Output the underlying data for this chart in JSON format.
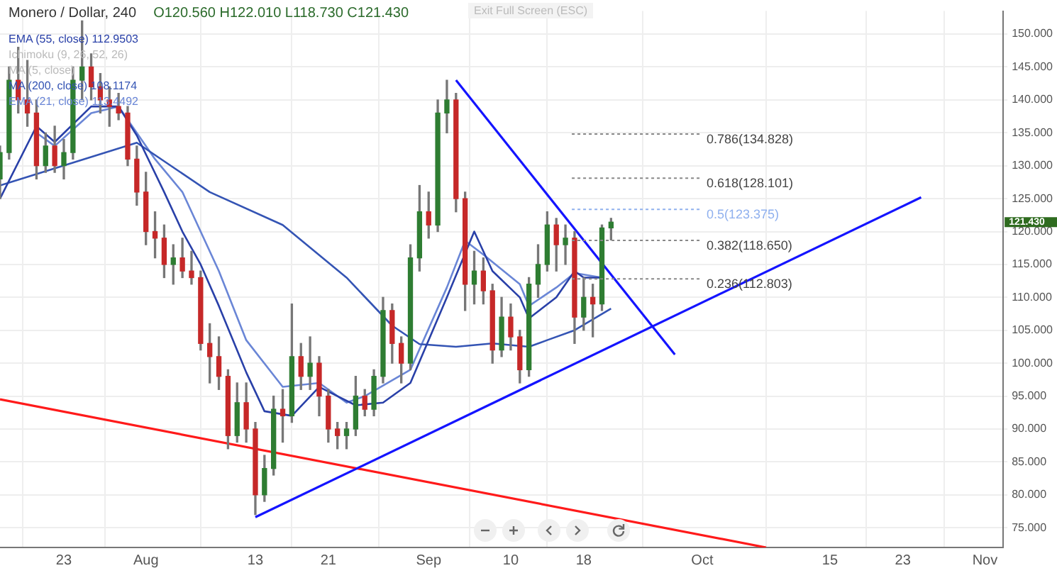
{
  "chart_data": {
    "type": "candlestick",
    "title": "Monero / Dollar, 240",
    "subtitle": "O120.560 H122.010 L118.730 C121.430",
    "x": [
      "--07-16",
      "--07-17",
      "--07-18",
      "--07-19",
      "--07-20",
      "--07-21",
      "--07-22",
      "--07-23",
      "--07-24",
      "--07-25",
      "--07-26",
      "--07-27",
      "--07-28",
      "--07-29",
      "--07-30",
      "--07-31",
      "--08-01",
      "--08-02",
      "--08-03",
      "--08-04",
      "--08-05",
      "--08-06",
      "--08-07",
      "--08-08",
      "--08-09",
      "--08-10",
      "--08-11",
      "--08-12",
      "--08-13",
      "--08-14",
      "--08-15",
      "--08-16",
      "--08-17",
      "--08-18",
      "--08-19",
      "--08-20",
      "--08-21",
      "--08-22",
      "--08-23",
      "--08-24",
      "--08-25",
      "--08-26",
      "--08-27",
      "--08-28",
      "--08-29",
      "--08-30",
      "--08-31",
      "--09-01",
      "--09-02",
      "--09-03",
      "--09-04",
      "--09-05",
      "--09-06",
      "--09-07",
      "--09-08",
      "--09-09",
      "--09-10",
      "--09-11",
      "--09-12",
      "--09-13",
      "--09-14",
      "--09-15",
      "--09-16",
      "--09-17",
      "--09-18",
      "--09-19",
      "--09-20",
      "--09-21"
    ],
    "ohlc": [
      [
        128,
        133,
        125,
        132
      ],
      [
        132,
        145,
        131,
        143
      ],
      [
        143,
        148,
        138,
        140
      ],
      [
        140,
        146,
        136,
        138
      ],
      [
        138,
        140,
        128,
        130
      ],
      [
        130,
        135,
        129,
        133
      ],
      [
        133,
        136,
        129,
        130
      ],
      [
        130,
        134,
        128,
        132
      ],
      [
        132,
        145,
        131,
        143
      ],
      [
        143,
        152,
        140,
        145
      ],
      [
        145,
        147,
        140,
        142
      ],
      [
        142,
        144,
        138,
        140
      ],
      [
        140,
        142,
        136,
        139
      ],
      [
        139,
        141,
        137,
        138
      ],
      [
        138,
        139,
        130,
        131
      ],
      [
        131,
        133,
        124,
        126
      ],
      [
        126,
        129,
        118,
        120
      ],
      [
        120,
        123,
        116,
        119
      ],
      [
        119,
        121,
        113,
        115
      ],
      [
        115,
        118,
        112,
        116
      ],
      [
        116,
        119,
        113,
        114
      ],
      [
        114,
        117,
        112,
        113
      ],
      [
        113,
        114,
        102,
        103
      ],
      [
        103,
        106,
        97,
        101
      ],
      [
        101,
        104,
        96,
        98
      ],
      [
        98,
        99,
        87,
        89
      ],
      [
        89,
        97,
        88,
        94
      ],
      [
        94,
        97,
        88,
        90
      ],
      [
        90,
        91,
        77,
        80
      ],
      [
        80,
        86,
        79,
        84
      ],
      [
        84,
        95,
        83,
        93
      ],
      [
        93,
        96,
        88,
        92
      ],
      [
        92,
        109,
        91,
        101
      ],
      [
        101,
        103,
        96,
        98
      ],
      [
        98,
        104,
        96,
        100
      ],
      [
        100,
        101,
        92,
        95
      ],
      [
        95,
        96,
        88,
        90
      ],
      [
        90,
        91,
        87,
        89
      ],
      [
        89,
        91,
        87,
        90
      ],
      [
        90,
        98,
        89,
        95
      ],
      [
        95,
        96,
        92,
        93
      ],
      [
        93,
        99,
        92,
        98
      ],
      [
        98,
        110,
        97,
        108
      ],
      [
        108,
        109,
        100,
        103
      ],
      [
        103,
        104,
        97,
        100
      ],
      [
        100,
        118,
        99,
        116
      ],
      [
        116,
        127,
        114,
        123
      ],
      [
        123,
        126,
        119,
        121
      ],
      [
        121,
        140,
        120,
        138
      ],
      [
        138,
        143,
        135,
        140
      ],
      [
        140,
        141,
        123,
        125
      ],
      [
        125,
        126,
        108,
        112
      ],
      [
        112,
        117,
        109,
        114
      ],
      [
        114,
        116,
        109,
        111
      ],
      [
        111,
        112,
        100,
        102
      ],
      [
        102,
        110,
        101,
        107
      ],
      [
        107,
        109,
        102,
        104
      ],
      [
        104,
        105,
        97,
        99
      ],
      [
        99,
        113,
        98,
        112
      ],
      [
        112,
        118,
        110,
        115
      ],
      [
        115,
        123,
        114,
        121
      ],
      [
        121,
        122,
        114,
        118
      ],
      [
        118,
        121,
        115,
        119
      ],
      [
        119,
        120,
        103,
        107
      ],
      [
        107,
        113,
        105,
        110
      ],
      [
        110,
        112,
        104,
        109
      ],
      [
        109,
        121,
        108,
        120.56
      ],
      [
        120.56,
        122.01,
        118.73,
        121.43
      ]
    ],
    "series": [
      {
        "type": "line",
        "name": "EMA (55, close) 112.9503",
        "color": "#2940a8",
        "x": [
          "--07-16",
          "--07-20",
          "--07-22",
          "--07-26",
          "--07-29",
          "--07-31",
          "--08-03",
          "--08-05",
          "--08-07",
          "--08-09",
          "--08-12",
          "--08-14",
          "--08-17",
          "--08-20",
          "--08-22",
          "--08-24",
          "--08-27",
          "--08-30",
          "--09-03",
          "--09-06",
          "--09-08",
          "--09-11",
          "--09-12",
          "--09-15",
          "--09-17",
          "--09-18",
          "--09-20"
        ],
        "values": [
          125,
          136,
          133.6,
          139,
          139,
          134.6,
          126,
          120,
          115,
          108.7,
          98.6,
          92.7,
          92,
          96.4,
          95,
          93.6,
          94,
          97,
          110,
          120,
          114,
          110,
          106.8,
          110,
          114,
          113,
          113
        ]
      },
      {
        "type": "line",
        "name": "MA (200, close) 108.1174",
        "color": "#3454b4",
        "x": [
          "--07-16",
          "--07-31",
          "--08-08",
          "--08-16",
          "--08-23",
          "--08-28",
          "--08-31",
          "--09-04",
          "--09-08",
          "--09-12",
          "--09-14",
          "--09-17",
          "--09-21"
        ],
        "values": [
          127,
          133.5,
          126,
          121,
          113,
          105.7,
          102.9,
          102.5,
          103,
          102.5,
          103.5,
          105,
          108.3
        ]
      },
      {
        "type": "line",
        "name": "EMA (21, close) 113.4492",
        "color": "#6a86d6",
        "x": [
          "--07-20",
          "--07-22",
          "--07-26",
          "--07-29",
          "--08-02",
          "--08-05",
          "--08-09",
          "--08-12",
          "--08-16",
          "--08-20",
          "--08-23",
          "--08-25",
          "--08-30",
          "--09-03",
          "--09-05",
          "--09-07",
          "--09-11",
          "--09-12",
          "--09-15",
          "--09-17",
          "--09-20"
        ],
        "values": [
          135,
          133,
          138,
          139,
          131,
          126,
          114,
          103.5,
          96.4,
          97,
          94,
          95,
          99,
          111.5,
          118.6,
          116.5,
          112,
          108.7,
          111.5,
          113.7,
          113
        ]
      },
      {
        "type": "line",
        "color": "#1414ff",
        "x": [
          "--09-04",
          "--09-28"
        ],
        "values": [
          143,
          101.3
        ]
      },
      {
        "type": "line",
        "color": "#1414ff",
        "x": [
          "--08-13",
          "--10-25"
        ],
        "values": [
          76.6,
          125.2
        ]
      },
      {
        "type": "line",
        "color": "#ff1a1a",
        "x": [
          "--07-16",
          "--10-08"
        ],
        "values": [
          94.5,
          72
        ]
      }
    ],
    "ref_lines": [
      {
        "axis": "y",
        "value": 134.828,
        "label": "0.786(134.828)",
        "color": "#888888",
        "line_style": "dotted"
      },
      {
        "axis": "y",
        "value": 128.101,
        "label": "0.618(128.101)",
        "color": "#888888",
        "line_style": "dotted"
      },
      {
        "axis": "y",
        "value": 123.375,
        "label": "0.5(123.375)",
        "color": "#8fb0ee",
        "line_style": "dotted"
      },
      {
        "axis": "y",
        "value": 118.65,
        "label": "0.382(118.650)",
        "color": "#888888",
        "line_style": "dotted"
      },
      {
        "axis": "y",
        "value": 112.803,
        "label": "0.236(112.803)",
        "color": "#888888",
        "line_style": "dotted"
      }
    ],
    "annotations": [
      "Ichimoku (9, 26, 52, 26)",
      "MA (5, close)",
      "121.430",
      "Exit Full Screen (ESC)"
    ],
    "xlim": [
      "--07-16",
      "--11-03"
    ],
    "xticks": [
      {
        "value": "--07-23",
        "label": "23"
      },
      {
        "value": "--08-01",
        "label": "Aug"
      },
      {
        "value": "--08-13",
        "label": "13"
      },
      {
        "value": "--08-21",
        "label": "21"
      },
      {
        "value": "--09-01",
        "label": "Sep"
      },
      {
        "value": "--09-10",
        "label": "10"
      },
      {
        "value": "--09-18",
        "label": "18"
      },
      {
        "value": "--10-01",
        "label": "Oct"
      },
      {
        "value": "--10-15",
        "label": "15"
      },
      {
        "value": "--10-23",
        "label": "23"
      },
      {
        "value": "--11-01",
        "label": "Nov"
      }
    ],
    "ylim": [
      72,
      153.5
    ],
    "yticks": [
      {
        "value": 75,
        "label": "75.000"
      },
      {
        "value": 80,
        "label": "80.000"
      },
      {
        "value": 85,
        "label": "85.000"
      },
      {
        "value": 90,
        "label": "90.000"
      },
      {
        "value": 95,
        "label": "95.000"
      },
      {
        "value": 100,
        "label": "100.000"
      },
      {
        "value": 105,
        "label": "105.000"
      },
      {
        "value": 110,
        "label": "110.000"
      },
      {
        "value": 115,
        "label": "115.000"
      },
      {
        "value": 120,
        "label": "120.000"
      },
      {
        "value": 125,
        "label": "125.000"
      },
      {
        "value": 130,
        "label": "130.000"
      },
      {
        "value": 135,
        "label": "135.000"
      },
      {
        "value": 140,
        "label": "140.000"
      },
      {
        "value": 145,
        "label": "145.000"
      },
      {
        "value": 150,
        "label": "150.000"
      }
    ],
    "grid": true,
    "legend": "top left",
    "marker": "none",
    "line_style": "solid"
  }
}
